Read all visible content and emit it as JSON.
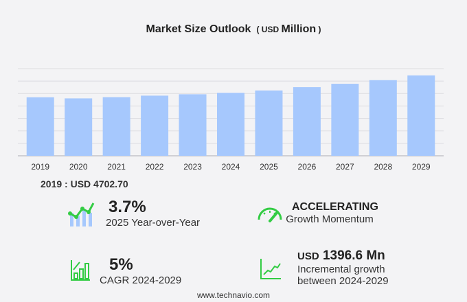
{
  "title": "Market Size Outlook",
  "unit_prefix": "USD",
  "unit": "Million",
  "highlight": {
    "label": "2019 : USD  4702.70"
  },
  "stats": [
    {
      "value": "3.7%",
      "label": "2025 Year-over-Year",
      "icon": "chart-growth-icon"
    },
    {
      "value": "ACCELERATING",
      "label": "Growth Momentum",
      "icon": "speedometer-icon"
    },
    {
      "value": "5%",
      "label": "CAGR 2024-2029",
      "icon": "bar-chart-up-icon"
    },
    {
      "value_prefix": "USD",
      "value": "1396.6 Mn",
      "label1": "Incremental growth",
      "label2": "between 2024-2029",
      "icon": "trend-line-icon"
    }
  ],
  "footer": "www.technavio.com",
  "colors": {
    "bar": "#a6c8fd",
    "accent": "#33cc44"
  },
  "chart_data": {
    "type": "bar",
    "categories": [
      "2019",
      "2020",
      "2021",
      "2022",
      "2023",
      "2024",
      "2025",
      "2026",
      "2027",
      "2028",
      "2029"
    ],
    "values": [
      4702.7,
      4610,
      4710,
      4830,
      4940,
      5060,
      5247,
      5510,
      5785,
      6075,
      6457
    ],
    "title": "Market Size Outlook (USD Million)",
    "xlabel": "",
    "ylabel": "",
    "ylim": [
      0,
      7000
    ],
    "grid": true,
    "legend": "none"
  }
}
